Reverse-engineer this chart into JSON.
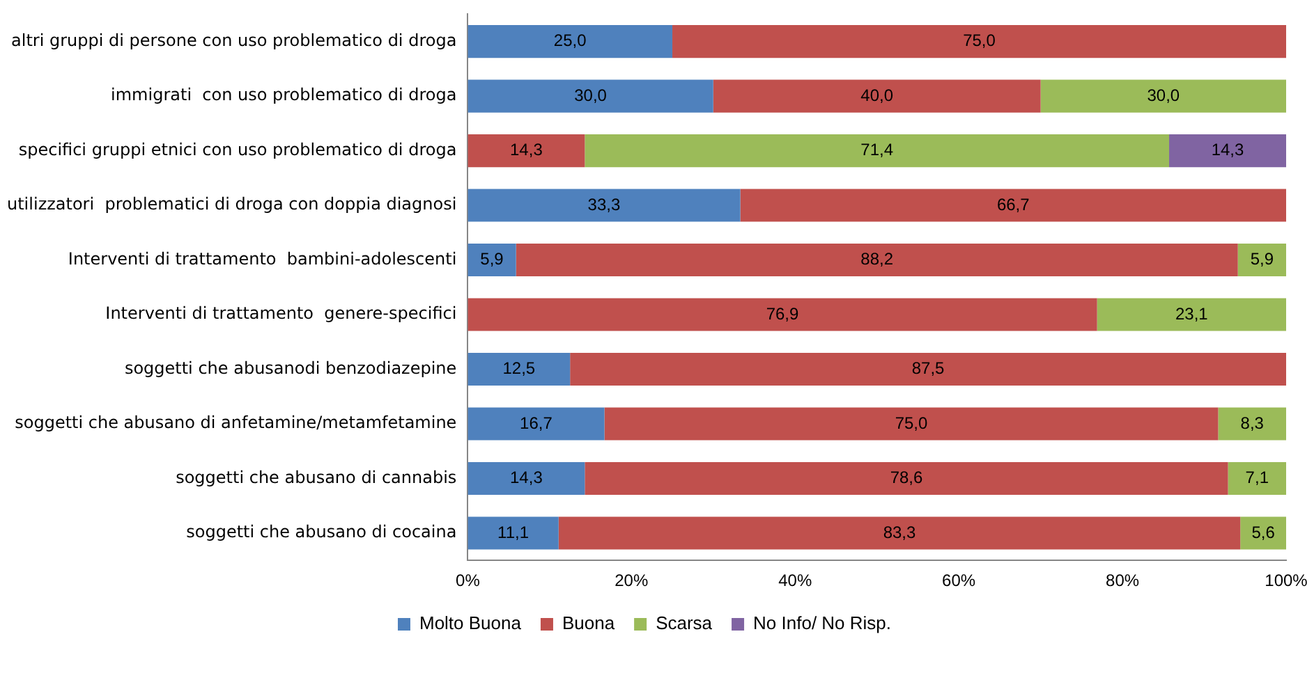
{
  "chart_data": {
    "type": "bar",
    "orientation": "horizontal",
    "stacked": true,
    "categories": [
      "altri gruppi di persone con uso problematico di droga",
      "immigrati  con uso problematico di droga",
      "specifici gruppi etnici con uso problematico di droga",
      "utilizzatori  problematici di droga con doppia diagnosi",
      "Interventi di trattamento  bambini-adolescenti",
      "Interventi di trattamento  genere-specifici",
      "soggetti che abusanodi benzodiazepine",
      "soggetti che abusano di anfetamine/metamfetamine",
      "soggetti che abusano di cannabis",
      "soggetti che abusano di cocaina"
    ],
    "series": [
      {
        "name": "Molto Buona",
        "color": "#4f81bd",
        "values": [
          25.0,
          30.0,
          null,
          33.3,
          5.9,
          null,
          12.5,
          16.7,
          14.3,
          11.1
        ],
        "value_labels": [
          "25,0",
          "30,0",
          null,
          "33,3",
          "5,9",
          null,
          "12,5",
          "16,7",
          "14,3",
          "11,1"
        ]
      },
      {
        "name": "Buona",
        "color": "#c0504d",
        "values": [
          75.0,
          40.0,
          14.3,
          66.7,
          88.2,
          76.9,
          87.5,
          75.0,
          78.6,
          83.3
        ],
        "value_labels": [
          "75,0",
          "40,0",
          "14,3",
          "66,7",
          "88,2",
          "76,9",
          "87,5",
          "75,0",
          "78,6",
          "83,3"
        ]
      },
      {
        "name": "Scarsa",
        "color": "#9bbb59",
        "values": [
          null,
          30.0,
          71.4,
          null,
          5.9,
          23.1,
          null,
          8.3,
          7.1,
          5.6
        ],
        "value_labels": [
          null,
          "30,0",
          "71,4",
          null,
          "5,9",
          "23,1",
          null,
          "8,3",
          "7,1",
          "5,6"
        ]
      },
      {
        "name": "No Info/ No Risp.",
        "color": "#8064a2",
        "values": [
          null,
          null,
          14.3,
          null,
          null,
          null,
          null,
          null,
          null,
          null
        ],
        "value_labels": [
          null,
          null,
          "14,3",
          null,
          null,
          null,
          null,
          null,
          null,
          null
        ]
      }
    ],
    "xlim": [
      0,
      100
    ],
    "xticks": [
      {
        "value": 0,
        "label": "0%"
      },
      {
        "value": 20,
        "label": "20%"
      },
      {
        "value": 40,
        "label": "40%"
      },
      {
        "value": 60,
        "label": "60%"
      },
      {
        "value": 80,
        "label": "80%"
      },
      {
        "value": 100,
        "label": "100%"
      }
    ],
    "grid": false,
    "legend": "bottom"
  }
}
